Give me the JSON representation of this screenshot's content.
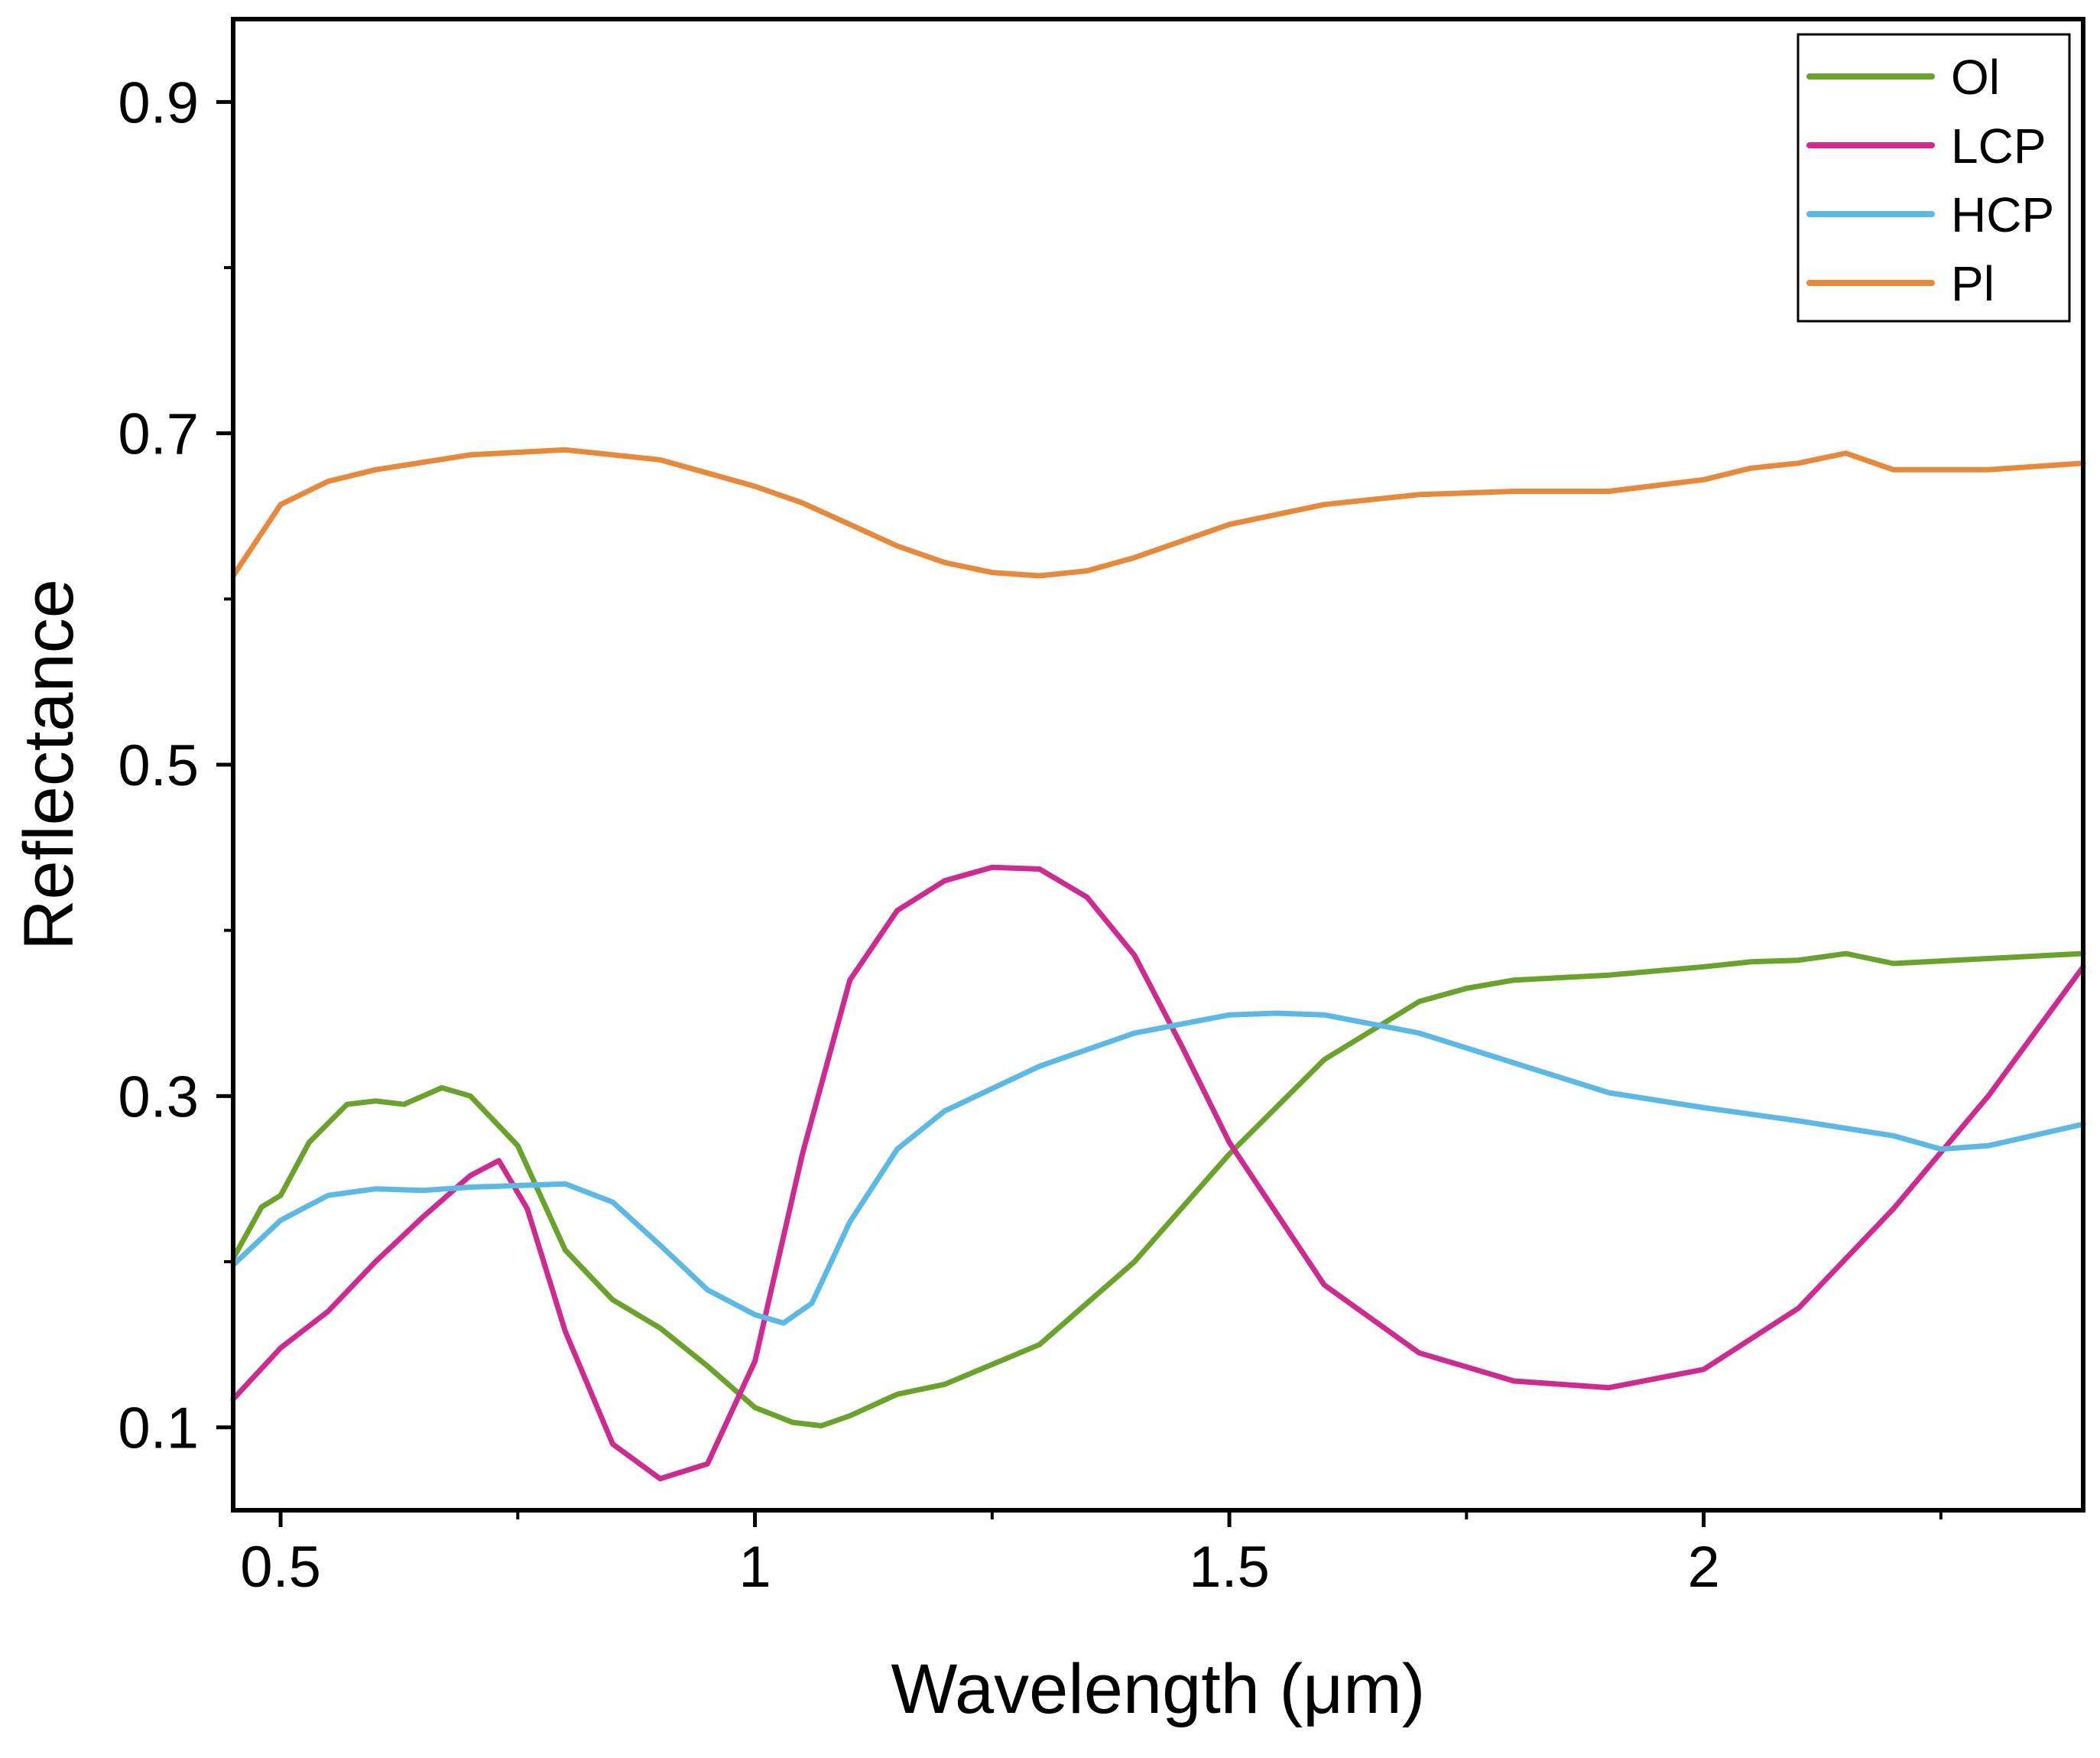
{
  "chart_data": {
    "type": "line",
    "title": "",
    "xlabel": "Wavelength (μm)",
    "ylabel": "Reflectance",
    "xlim": [
      0.45,
      2.4
    ],
    "ylim": [
      0.05,
      0.95
    ],
    "xticks": [
      {
        "value": 0.5,
        "label": "0.5"
      },
      {
        "value": 1.0,
        "label": "1"
      },
      {
        "value": 1.5,
        "label": "1.5"
      },
      {
        "value": 2.0,
        "label": "2"
      }
    ],
    "xminor": [
      0.75,
      1.25,
      1.75,
      2.25
    ],
    "yticks": [
      {
        "value": 0.1,
        "label": "0.1"
      },
      {
        "value": 0.3,
        "label": "0.3"
      },
      {
        "value": 0.5,
        "label": "0.5"
      },
      {
        "value": 0.7,
        "label": "0.7"
      },
      {
        "value": 0.9,
        "label": "0.9"
      }
    ],
    "yminor": [
      0.2,
      0.4,
      0.6,
      0.8
    ],
    "grid": false,
    "legend_position": "top-right",
    "series": [
      {
        "name": "Ol",
        "color": "#6aa32a",
        "x": [
          0.45,
          0.48,
          0.5,
          0.53,
          0.57,
          0.6,
          0.63,
          0.67,
          0.7,
          0.75,
          0.8,
          0.85,
          0.9,
          0.95,
          1.0,
          1.04,
          1.07,
          1.1,
          1.15,
          1.2,
          1.3,
          1.4,
          1.5,
          1.6,
          1.7,
          1.75,
          1.8,
          1.9,
          2.0,
          2.05,
          2.1,
          2.15,
          2.2,
          2.3,
          2.4
        ],
        "y": [
          0.202,
          0.233,
          0.24,
          0.272,
          0.295,
          0.297,
          0.295,
          0.305,
          0.3,
          0.27,
          0.207,
          0.177,
          0.16,
          0.137,
          0.112,
          0.103,
          0.101,
          0.107,
          0.12,
          0.126,
          0.15,
          0.2,
          0.265,
          0.322,
          0.357,
          0.365,
          0.37,
          0.373,
          0.378,
          0.381,
          0.382,
          0.386,
          0.38,
          0.383,
          0.386
        ]
      },
      {
        "name": "LCP",
        "color": "#cf2a8f",
        "x": [
          0.45,
          0.5,
          0.55,
          0.6,
          0.65,
          0.7,
          0.73,
          0.76,
          0.8,
          0.85,
          0.9,
          0.95,
          1.0,
          1.05,
          1.1,
          1.15,
          1.2,
          1.25,
          1.3,
          1.35,
          1.4,
          1.45,
          1.5,
          1.6,
          1.7,
          1.8,
          1.9,
          2.0,
          2.1,
          2.2,
          2.3,
          2.4
        ],
        "y": [
          0.117,
          0.148,
          0.17,
          0.2,
          0.227,
          0.252,
          0.261,
          0.232,
          0.158,
          0.09,
          0.069,
          0.078,
          0.14,
          0.265,
          0.37,
          0.412,
          0.43,
          0.438,
          0.437,
          0.42,
          0.385,
          0.33,
          0.272,
          0.186,
          0.145,
          0.128,
          0.124,
          0.135,
          0.172,
          0.232,
          0.3,
          0.378
        ]
      },
      {
        "name": "HCP",
        "color": "#5bb9e8",
        "x": [
          0.45,
          0.5,
          0.55,
          0.6,
          0.65,
          0.7,
          0.8,
          0.85,
          0.9,
          0.95,
          1.0,
          1.03,
          1.06,
          1.1,
          1.15,
          1.2,
          1.3,
          1.4,
          1.5,
          1.55,
          1.6,
          1.7,
          1.8,
          1.9,
          2.0,
          2.1,
          2.2,
          2.25,
          2.3,
          2.4
        ],
        "y": [
          0.198,
          0.225,
          0.24,
          0.244,
          0.243,
          0.245,
          0.247,
          0.236,
          0.21,
          0.183,
          0.168,
          0.163,
          0.175,
          0.224,
          0.268,
          0.291,
          0.318,
          0.338,
          0.349,
          0.35,
          0.349,
          0.338,
          0.32,
          0.302,
          0.293,
          0.285,
          0.276,
          0.268,
          0.27,
          0.283
        ]
      },
      {
        "name": "Pl",
        "color": "#e8893a",
        "x": [
          0.45,
          0.5,
          0.55,
          0.6,
          0.7,
          0.8,
          0.9,
          1.0,
          1.05,
          1.1,
          1.15,
          1.2,
          1.25,
          1.3,
          1.35,
          1.4,
          1.5,
          1.6,
          1.7,
          1.8,
          1.9,
          2.0,
          2.05,
          2.1,
          2.15,
          2.2,
          2.3,
          2.4
        ],
        "y": [
          0.614,
          0.657,
          0.671,
          0.678,
          0.687,
          0.69,
          0.684,
          0.668,
          0.658,
          0.645,
          0.632,
          0.622,
          0.616,
          0.614,
          0.617,
          0.625,
          0.645,
          0.657,
          0.663,
          0.665,
          0.665,
          0.672,
          0.679,
          0.682,
          0.688,
          0.678,
          0.678,
          0.682
        ]
      }
    ]
  }
}
